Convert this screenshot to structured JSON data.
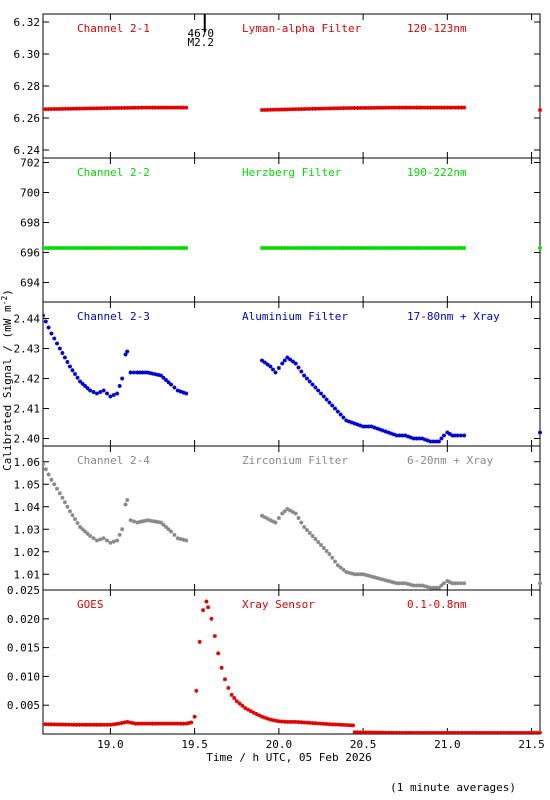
{
  "x_axis": {
    "label": "Time / h UTC, 05 Feb 2026",
    "range": [
      18.6,
      21.55
    ],
    "tick_values": [
      19.0,
      19.5,
      20.0,
      20.5,
      21.0,
      21.5
    ],
    "tick_labels": [
      "19.0",
      "19.5",
      "20.0",
      "20.5",
      "21.0",
      "21.5"
    ]
  },
  "y_axis_label": "Calibrated Signal / (mW m",
  "y_axis_label_sup": "-2",
  "y_axis_label_end": ")",
  "footnote": "(1 minute averages)",
  "flare_marker": {
    "x": 19.56,
    "id": "4670",
    "class": "M2.2"
  },
  "chart_data": [
    {
      "type": "scatter",
      "channel": "Channel 2-1",
      "filter": "Lyman-alpha Filter",
      "band": "120-123nm",
      "color": "#e00000",
      "ylim": [
        6.235,
        6.325
      ],
      "y_ticks": [
        6.24,
        6.26,
        6.28,
        6.3,
        6.32
      ],
      "y_tick_labels": [
        "6.24",
        "6.26",
        "6.28",
        "6.30",
        "6.32"
      ],
      "segments": [
        {
          "points": [
            [
              18.6,
              6.2655
            ],
            [
              19.0,
              6.2662
            ],
            [
              19.2,
              6.2665
            ],
            [
              19.45,
              6.2665
            ]
          ]
        },
        {
          "points": [
            [
              19.9,
              6.265
            ],
            [
              20.1,
              6.2655
            ],
            [
              20.4,
              6.2662
            ],
            [
              20.7,
              6.2665
            ],
            [
              21.1,
              6.2665
            ]
          ]
        },
        {
          "points": [
            [
              21.55,
              6.265
            ]
          ]
        }
      ]
    },
    {
      "type": "scatter",
      "channel": "Channel 2-2",
      "filter": "Herzberg Filter",
      "band": "190-222nm",
      "color": "#00dd00",
      "ylim": [
        692.7,
        702.3
      ],
      "y_ticks": [
        694,
        696,
        698,
        700,
        702
      ],
      "y_tick_labels": [
        "694",
        "696",
        "698",
        "700",
        "702"
      ],
      "segments": [
        {
          "points": [
            [
              18.6,
              696.3
            ],
            [
              19.0,
              696.3
            ],
            [
              19.45,
              696.3
            ]
          ]
        },
        {
          "points": [
            [
              19.9,
              696.3
            ],
            [
              20.5,
              696.3
            ],
            [
              21.1,
              696.3
            ]
          ]
        },
        {
          "points": [
            [
              21.55,
              696.3
            ]
          ]
        }
      ]
    },
    {
      "type": "scatter",
      "channel": "Channel 2-3",
      "filter": "Aluminium Filter",
      "band": "17-80nm + Xray",
      "color": "#0000cc",
      "ylim": [
        2.3975,
        2.4455
      ],
      "y_ticks": [
        2.4,
        2.41,
        2.42,
        2.43,
        2.44
      ],
      "y_tick_labels": [
        "2.40",
        "2.41",
        "2.42",
        "2.43",
        "2.44"
      ],
      "segments": [
        {
          "points": [
            [
              18.6,
              2.441
            ],
            [
              18.65,
              2.435
            ],
            [
              18.7,
              2.43
            ],
            [
              18.76,
              2.424
            ],
            [
              18.82,
              2.419
            ],
            [
              18.88,
              2.416
            ],
            [
              18.92,
              2.415
            ],
            [
              18.96,
              2.416
            ],
            [
              19.0,
              2.414
            ],
            [
              19.04,
              2.415
            ],
            [
              19.07,
              2.42
            ],
            [
              19.09,
              2.428
            ],
            [
              19.1,
              2.429
            ],
            [
              19.12,
              2.422
            ],
            [
              19.16,
              2.422
            ],
            [
              19.22,
              2.422
            ],
            [
              19.3,
              2.421
            ],
            [
              19.36,
              2.418
            ],
            [
              19.4,
              2.416
            ],
            [
              19.45,
              2.415
            ]
          ]
        },
        {
          "points": [
            [
              19.9,
              2.426
            ],
            [
              19.95,
              2.424
            ],
            [
              19.98,
              2.422
            ],
            [
              20.02,
              2.425
            ],
            [
              20.05,
              2.427
            ],
            [
              20.1,
              2.425
            ],
            [
              20.15,
              2.421
            ],
            [
              20.2,
              2.418
            ],
            [
              20.25,
              2.415
            ],
            [
              20.3,
              2.412
            ],
            [
              20.35,
              2.409
            ],
            [
              20.4,
              2.406
            ],
            [
              20.45,
              2.405
            ],
            [
              20.5,
              2.404
            ],
            [
              20.55,
              2.404
            ],
            [
              20.6,
              2.403
            ],
            [
              20.65,
              2.402
            ],
            [
              20.7,
              2.401
            ],
            [
              20.75,
              2.401
            ],
            [
              20.8,
              2.4
            ],
            [
              20.85,
              2.4
            ],
            [
              20.9,
              2.399
            ],
            [
              20.95,
              2.399
            ],
            [
              20.98,
              2.401
            ],
            [
              21.0,
              2.402
            ],
            [
              21.03,
              2.401
            ],
            [
              21.06,
              2.401
            ],
            [
              21.1,
              2.401
            ]
          ]
        },
        {
          "points": [
            [
              21.55,
              2.402
            ]
          ]
        }
      ]
    },
    {
      "type": "scatter",
      "channel": "Channel 2-4",
      "filter": "Zirconium Filter",
      "band": "6-20nm + Xray",
      "color": "#888888",
      "ylim": [
        1.003,
        1.067
      ],
      "y_ticks": [
        1.01,
        1.02,
        1.03,
        1.04,
        1.05,
        1.06
      ],
      "y_tick_labels": [
        "1.01",
        "1.02",
        "1.03",
        "1.04",
        "1.05",
        "1.06"
      ],
      "segments": [
        {
          "points": [
            [
              18.6,
              1.059
            ],
            [
              18.65,
              1.052
            ],
            [
              18.7,
              1.046
            ],
            [
              18.76,
              1.038
            ],
            [
              18.82,
              1.031
            ],
            [
              18.88,
              1.027
            ],
            [
              18.92,
              1.025
            ],
            [
              18.96,
              1.026
            ],
            [
              19.0,
              1.024
            ],
            [
              19.04,
              1.025
            ],
            [
              19.07,
              1.03
            ],
            [
              19.09,
              1.041
            ],
            [
              19.1,
              1.043
            ],
            [
              19.12,
              1.034
            ],
            [
              19.16,
              1.033
            ],
            [
              19.22,
              1.034
            ],
            [
              19.3,
              1.033
            ],
            [
              19.36,
              1.029
            ],
            [
              19.4,
              1.026
            ],
            [
              19.45,
              1.025
            ]
          ]
        },
        {
          "points": [
            [
              19.9,
              1.036
            ],
            [
              19.95,
              1.034
            ],
            [
              19.98,
              1.033
            ],
            [
              20.02,
              1.037
            ],
            [
              20.05,
              1.039
            ],
            [
              20.1,
              1.037
            ],
            [
              20.15,
              1.031
            ],
            [
              20.2,
              1.027
            ],
            [
              20.25,
              1.023
            ],
            [
              20.3,
              1.019
            ],
            [
              20.35,
              1.014
            ],
            [
              20.4,
              1.011
            ],
            [
              20.45,
              1.01
            ],
            [
              20.5,
              1.01
            ],
            [
              20.55,
              1.009
            ],
            [
              20.6,
              1.008
            ],
            [
              20.65,
              1.007
            ],
            [
              20.7,
              1.006
            ],
            [
              20.75,
              1.006
            ],
            [
              20.8,
              1.005
            ],
            [
              20.85,
              1.005
            ],
            [
              20.9,
              1.004
            ],
            [
              20.95,
              1.004
            ],
            [
              20.98,
              1.006
            ],
            [
              21.0,
              1.007
            ],
            [
              21.03,
              1.006
            ],
            [
              21.06,
              1.006
            ],
            [
              21.1,
              1.006
            ]
          ]
        },
        {
          "points": [
            [
              21.55,
              1.006
            ]
          ]
        }
      ]
    },
    {
      "type": "scatter",
      "channel": "GOES",
      "filter": "Xray Sensor",
      "band": "0.1-0.8nm",
      "color": "#e00000",
      "ylim": [
        0.0,
        0.025
      ],
      "y_ticks": [
        0.005,
        0.01,
        0.015,
        0.02,
        0.025
      ],
      "y_tick_labels": [
        "0.005",
        "0.010",
        "0.015",
        "0.020",
        "0.025"
      ],
      "segments": [
        {
          "points": [
            [
              18.6,
              0.0017
            ],
            [
              18.8,
              0.0016
            ],
            [
              19.0,
              0.0016
            ],
            [
              19.05,
              0.0018
            ],
            [
              19.1,
              0.0021
            ],
            [
              19.15,
              0.0018
            ],
            [
              19.3,
              0.0018
            ],
            [
              19.45,
              0.0018
            ],
            [
              19.48,
              0.002
            ]
          ]
        },
        {
          "points": [
            [
              19.5,
              0.003
            ],
            [
              19.51,
              0.0075
            ],
            [
              19.53,
              0.016
            ],
            [
              19.55,
              0.0215
            ],
            [
              19.57,
              0.023
            ],
            [
              19.58,
              0.022
            ],
            [
              19.6,
              0.02
            ],
            [
              19.62,
              0.017
            ],
            [
              19.64,
              0.014
            ],
            [
              19.66,
              0.0115
            ],
            [
              19.68,
              0.0095
            ],
            [
              19.7,
              0.008
            ],
            [
              19.72,
              0.0068
            ],
            [
              19.75,
              0.0057
            ],
            [
              19.8,
              0.0045
            ],
            [
              19.85,
              0.0037
            ],
            [
              19.9,
              0.003
            ],
            [
              19.95,
              0.0025
            ],
            [
              20.0,
              0.0022
            ],
            [
              20.05,
              0.0021
            ],
            [
              20.1,
              0.0021
            ],
            [
              20.2,
              0.0019
            ],
            [
              20.3,
              0.0017
            ],
            [
              20.44,
              0.0015
            ]
          ]
        },
        {
          "points": [
            [
              20.45,
              0.0003
            ],
            [
              20.7,
              0.0002
            ],
            [
              21.0,
              0.0002
            ],
            [
              21.3,
              0.0002
            ],
            [
              21.55,
              0.0002
            ]
          ]
        }
      ]
    }
  ]
}
